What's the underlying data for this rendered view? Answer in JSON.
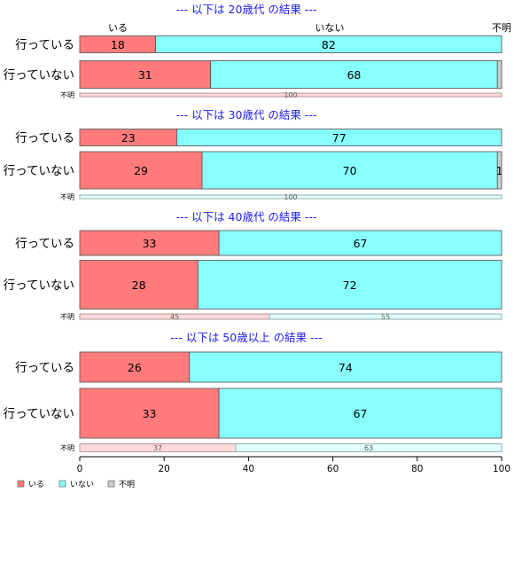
{
  "chart_data": {
    "type": "bar",
    "orientation": "horizontal",
    "stacked": true,
    "normalized_to": 100,
    "categories_legend": [
      "いる",
      "いない",
      "不明"
    ],
    "colors": {
      "いる": "#ff7b7b",
      "いない": "#88ffff",
      "不明": "#cccccc"
    },
    "colors_light": {
      "いる": "#ffd9d9",
      "いない": "#e2ffff",
      "不明": "#eeeeee"
    },
    "column_headers": [
      "いる",
      "いない",
      "不明"
    ],
    "xlim": [
      0,
      100
    ],
    "xticks": [
      "0",
      "20",
      "40",
      "60",
      "80",
      "100"
    ],
    "legend_position": "bottom-left",
    "panels": [
      {
        "title": "--- 以下は 20歳代 の結果 ---",
        "rows": [
          {
            "label": "行っている",
            "values": [
              18,
              82,
              0
            ],
            "labels": [
              "18",
              "82",
              ""
            ]
          },
          {
            "label": "行っていない",
            "values": [
              31,
              68,
              1
            ],
            "labels": [
              "31",
              "68",
              ""
            ]
          },
          {
            "label": "不明",
            "small": true,
            "values": [
              100,
              0,
              0
            ],
            "labels": [
              "100",
              "",
              ""
            ]
          }
        ]
      },
      {
        "title": "--- 以下は 30歳代 の結果 ---",
        "rows": [
          {
            "label": "行っている",
            "values": [
              23,
              77,
              0
            ],
            "labels": [
              "23",
              "77",
              ""
            ]
          },
          {
            "label": "行っていない",
            "values": [
              29,
              70,
              1
            ],
            "labels": [
              "29",
              "70",
              "1"
            ]
          },
          {
            "label": "不明",
            "small": true,
            "values": [
              0,
              100,
              0
            ],
            "labels": [
              "",
              "100",
              ""
            ]
          }
        ]
      },
      {
        "title": "--- 以下は 40歳代 の結果 ---",
        "rows": [
          {
            "label": "行っている",
            "values": [
              33,
              67,
              0
            ],
            "labels": [
              "33",
              "67",
              ""
            ]
          },
          {
            "label": "行っていない",
            "values": [
              28,
              72,
              0
            ],
            "labels": [
              "28",
              "72",
              ""
            ]
          },
          {
            "label": "不明",
            "small": true,
            "values": [
              45,
              55,
              0
            ],
            "labels": [
              "45",
              "55",
              ""
            ]
          }
        ]
      },
      {
        "title": "--- 以下は 50歳以上 の結果 ---",
        "rows": [
          {
            "label": "行っている",
            "values": [
              26,
              74,
              0
            ],
            "labels": [
              "26",
              "74",
              ""
            ]
          },
          {
            "label": "行っていない",
            "values": [
              33,
              67,
              0
            ],
            "labels": [
              "33",
              "67",
              ""
            ]
          },
          {
            "label": "不明",
            "small": true,
            "values": [
              37,
              63,
              0
            ],
            "labels": [
              "37",
              "63",
              ""
            ]
          }
        ]
      }
    ]
  }
}
